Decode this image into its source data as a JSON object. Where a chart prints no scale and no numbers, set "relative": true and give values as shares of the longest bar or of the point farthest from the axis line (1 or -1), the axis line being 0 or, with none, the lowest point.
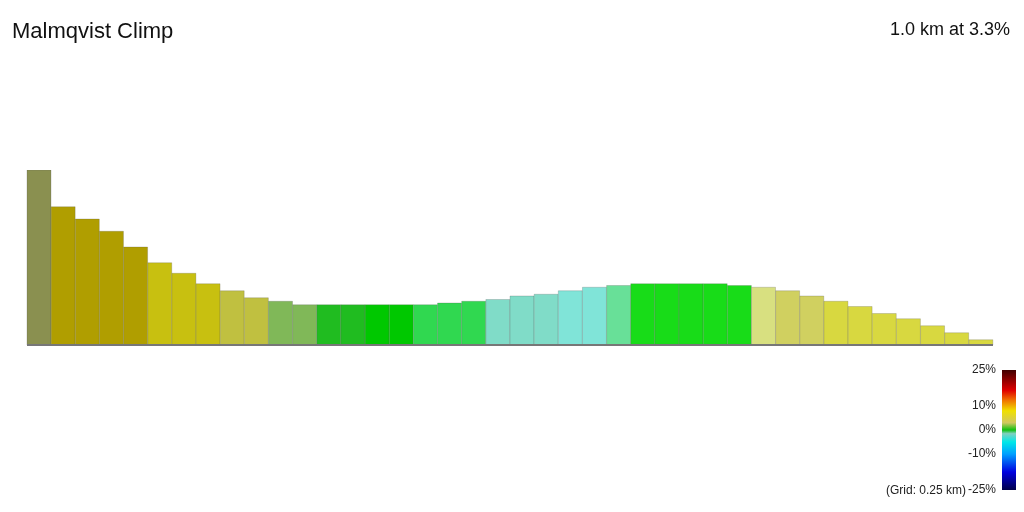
{
  "chart_data": {
    "type": "bar",
    "title": "Malmqvist Climp",
    "subtitle": "1.0 km at 3.3%",
    "relative": true,
    "categories": [
      null,
      null,
      null,
      null,
      null,
      null,
      null,
      null,
      null,
      null,
      null,
      null,
      null,
      null,
      null,
      null,
      null,
      null,
      null,
      null,
      null,
      null,
      null,
      null,
      null,
      null,
      null,
      null,
      null,
      null,
      null,
      null,
      null,
      null,
      null,
      null,
      null,
      null,
      null,
      null
    ],
    "values": [
      1.0,
      0.79,
      0.72,
      0.65,
      0.56,
      0.47,
      0.41,
      0.35,
      0.31,
      0.27,
      0.25,
      0.23,
      0.23,
      0.23,
      0.23,
      0.23,
      0.23,
      0.24,
      0.25,
      0.26,
      0.28,
      0.29,
      0.31,
      0.33,
      0.34,
      0.35,
      0.35,
      0.35,
      0.35,
      0.34,
      0.33,
      0.31,
      0.28,
      0.25,
      0.22,
      0.18,
      0.15,
      0.11,
      0.07,
      0.03
    ],
    "colors": [
      "#8a9050",
      "#b09e00",
      "#b09e00",
      "#b09e00",
      "#b09e00",
      "#c8c010",
      "#c8c010",
      "#c8c010",
      "#c0c040",
      "#c0c040",
      "#80b858",
      "#80b858",
      "#20bc20",
      "#20bc20",
      "#00c800",
      "#00c800",
      "#30d850",
      "#30d850",
      "#30d850",
      "#80dcc8",
      "#80dcc8",
      "#80dcc8",
      "#80e4d8",
      "#80e4d8",
      "#68e098",
      "#18dc18",
      "#18dc18",
      "#18dc18",
      "#18dc18",
      "#18dc18",
      "#d8e080",
      "#d0d060",
      "#d0d060",
      "#d8d840",
      "#d8d840",
      "#d8d840",
      "#d8d840",
      "#d8d840",
      "#d8d840",
      "#d8d840"
    ],
    "clim": [
      -25,
      25
    ],
    "cticks": [
      {
        "value": 25,
        "label": "25%"
      },
      {
        "value": 10,
        "label": "10%"
      },
      {
        "value": 0,
        "label": "0%"
      },
      {
        "value": -10,
        "label": "-10%"
      },
      {
        "value": -25,
        "label": "-25%"
      }
    ],
    "grid": false,
    "legend": false,
    "annotations": [
      "(Grid: 0.25 km)"
    ]
  }
}
